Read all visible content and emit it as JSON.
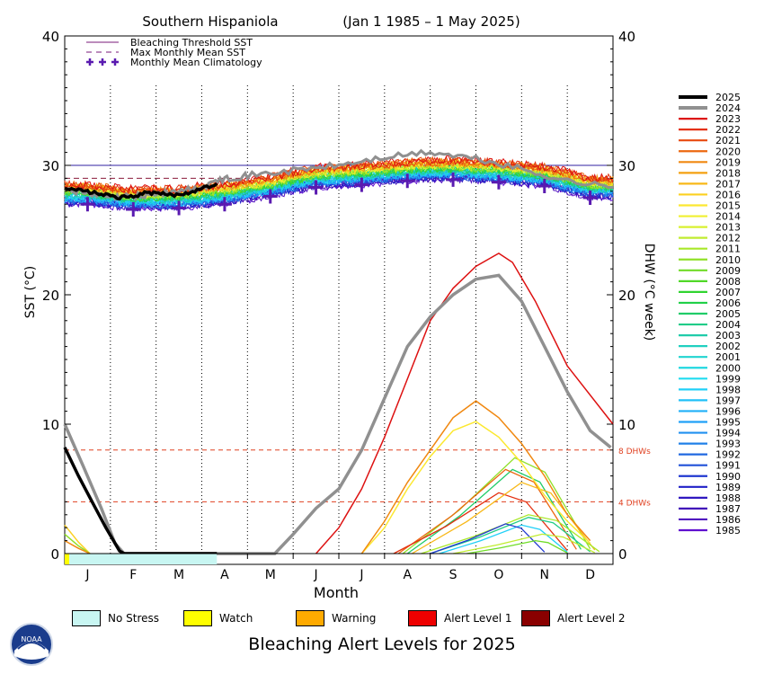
{
  "chart_data": {
    "type": "line",
    "title": "Southern Hispaniola",
    "date_range": "(Jan 1 1985 – 1 May 2025)",
    "xlabel": "Month",
    "ylabel_left": "SST (°C)",
    "ylabel_right": "DHW (°C week)",
    "months": [
      "J",
      "F",
      "M",
      "A",
      "M",
      "J",
      "J",
      "A",
      "S",
      "O",
      "N",
      "D"
    ],
    "ylim": [
      0,
      40
    ],
    "yticks": [
      0,
      10,
      20,
      30,
      40
    ],
    "bleaching_threshold_sst": 30.0,
    "max_monthly_mean_sst": 29.0,
    "dhw_thresholds": [
      {
        "value": 8,
        "label": "8 DHWs"
      },
      {
        "value": 4,
        "label": "4 DHWs"
      }
    ],
    "legend_top": [
      {
        "label": "Bleaching Threshold SST",
        "style": "solid",
        "color": "#7a1a7a"
      },
      {
        "label": "Max Monthly Mean SST",
        "style": "dashed",
        "color": "#7a1a7a"
      },
      {
        "label": "Monthly Mean Climatology",
        "style": "plus",
        "color": "#5a1ab0"
      }
    ],
    "climatology": [
      {
        "month": "J",
        "value": 27.0
      },
      {
        "month": "F",
        "value": 26.6
      },
      {
        "month": "M",
        "value": 26.7
      },
      {
        "month": "A",
        "value": 27.0
      },
      {
        "month": "M",
        "value": 27.6
      },
      {
        "month": "J",
        "value": 28.3
      },
      {
        "month": "J",
        "value": 28.5
      },
      {
        "month": "A",
        "value": 28.8
      },
      {
        "month": "S",
        "value": 28.9
      },
      {
        "month": "O",
        "value": 28.7
      },
      {
        "month": "N",
        "value": 28.4
      },
      {
        "month": "D",
        "value": 27.5
      }
    ],
    "years": [
      "2025",
      "2024",
      "2023",
      "2022",
      "2021",
      "2020",
      "2019",
      "2018",
      "2017",
      "2016",
      "2015",
      "2014",
      "2013",
      "2012",
      "2011",
      "2010",
      "2009",
      "2008",
      "2007",
      "2006",
      "2005",
      "2004",
      "2003",
      "2002",
      "2001",
      "2000",
      "1999",
      "1998",
      "1997",
      "1996",
      "1995",
      "1994",
      "1993",
      "1992",
      "1991",
      "1990",
      "1989",
      "1988",
      "1987",
      "1986",
      "1985"
    ],
    "year_colors": [
      "#000000",
      "#909090",
      "#dd1111",
      "#e43010",
      "#e84a10",
      "#ec6810",
      "#f08810",
      "#f4a010",
      "#f8b818",
      "#fcd020",
      "#fce830",
      "#f0f030",
      "#d8f030",
      "#c0ec30",
      "#a8e828",
      "#90e028",
      "#70dc28",
      "#50d828",
      "#30d430",
      "#20d048",
      "#20cc68",
      "#20cc88",
      "#20ccaa",
      "#20d0c0",
      "#20d4d0",
      "#20d8e0",
      "#20dcf0",
      "#20d0f8",
      "#20c0f8",
      "#20b0f8",
      "#20a0f8",
      "#2090f0",
      "#2080e8",
      "#2068e0",
      "#2050d8",
      "#2038d0",
      "#2020c8",
      "#3018c0",
      "#4010b8",
      "#5010c0",
      "#6010d0"
    ],
    "sst_2025": [
      {
        "x": 0.0,
        "y": 28.3
      },
      {
        "x": 0.3,
        "y": 28.1
      },
      {
        "x": 0.6,
        "y": 27.9
      },
      {
        "x": 0.9,
        "y": 27.7
      },
      {
        "x": 1.2,
        "y": 27.5
      },
      {
        "x": 1.5,
        "y": 27.6
      },
      {
        "x": 1.8,
        "y": 27.9
      },
      {
        "x": 2.1,
        "y": 27.8
      },
      {
        "x": 2.4,
        "y": 27.7
      },
      {
        "x": 2.7,
        "y": 27.9
      },
      {
        "x": 3.0,
        "y": 28.2
      },
      {
        "x": 3.33,
        "y": 28.6
      }
    ],
    "sst_2024": [
      {
        "x": 0.0,
        "y": 28.2
      },
      {
        "x": 0.5,
        "y": 27.8
      },
      {
        "x": 1.0,
        "y": 27.5
      },
      {
        "x": 1.5,
        "y": 27.6
      },
      {
        "x": 2.0,
        "y": 27.8
      },
      {
        "x": 2.5,
        "y": 28.0
      },
      {
        "x": 3.0,
        "y": 28.3
      },
      {
        "x": 3.5,
        "y": 29.0
      },
      {
        "x": 4.0,
        "y": 29.2
      },
      {
        "x": 5.0,
        "y": 29.6
      },
      {
        "x": 6.0,
        "y": 30.0
      },
      {
        "x": 7.0,
        "y": 30.6
      },
      {
        "x": 8.0,
        "y": 31.0
      },
      {
        "x": 9.0,
        "y": 30.5
      },
      {
        "x": 10.0,
        "y": 29.7
      },
      {
        "x": 11.0,
        "y": 28.8
      },
      {
        "x": 12.0,
        "y": 28.3
      }
    ],
    "dhw_2025": [
      {
        "x": 0.0,
        "y": 8.2
      },
      {
        "x": 0.3,
        "y": 6.0
      },
      {
        "x": 0.6,
        "y": 4.0
      },
      {
        "x": 0.9,
        "y": 2.0
      },
      {
        "x": 1.2,
        "y": 0.2
      },
      {
        "x": 1.3,
        "y": 0.0
      },
      {
        "x": 3.33,
        "y": 0.0
      }
    ],
    "dhw_2024": [
      {
        "x": 0.0,
        "y": 10.0
      },
      {
        "x": 0.4,
        "y": 6.8
      },
      {
        "x": 0.8,
        "y": 3.5
      },
      {
        "x": 1.1,
        "y": 0.8
      },
      {
        "x": 1.3,
        "y": 0.0
      },
      {
        "x": 4.6,
        "y": 0.0
      },
      {
        "x": 5.0,
        "y": 1.5
      },
      {
        "x": 5.5,
        "y": 3.5
      },
      {
        "x": 6.0,
        "y": 5.0
      },
      {
        "x": 6.5,
        "y": 8.0
      },
      {
        "x": 7.0,
        "y": 12.0
      },
      {
        "x": 7.5,
        "y": 16.0
      },
      {
        "x": 8.0,
        "y": 18.3
      },
      {
        "x": 8.5,
        "y": 20.0
      },
      {
        "x": 9.0,
        "y": 21.2
      },
      {
        "x": 9.5,
        "y": 21.5
      },
      {
        "x": 10.0,
        "y": 19.5
      },
      {
        "x": 10.5,
        "y": 16.0
      },
      {
        "x": 11.0,
        "y": 12.5
      },
      {
        "x": 11.5,
        "y": 9.5
      },
      {
        "x": 11.95,
        "y": 8.2
      }
    ],
    "dhw_2023": [
      {
        "x": 5.5,
        "y": 0.0
      },
      {
        "x": 6.0,
        "y": 2.0
      },
      {
        "x": 6.5,
        "y": 5.0
      },
      {
        "x": 7.0,
        "y": 9.0
      },
      {
        "x": 7.5,
        "y": 13.5
      },
      {
        "x": 8.0,
        "y": 18.0
      },
      {
        "x": 8.5,
        "y": 20.5
      },
      {
        "x": 9.0,
        "y": 22.2
      },
      {
        "x": 9.5,
        "y": 23.2
      },
      {
        "x": 9.8,
        "y": 22.5
      },
      {
        "x": 10.3,
        "y": 19.5
      },
      {
        "x": 11.0,
        "y": 14.5
      },
      {
        "x": 12.0,
        "y": 10.0
      }
    ],
    "dhw_2015": [
      {
        "x": 6.5,
        "y": 0.0
      },
      {
        "x": 7.0,
        "y": 2.0
      },
      {
        "x": 7.5,
        "y": 5.0
      },
      {
        "x": 8.0,
        "y": 7.5
      },
      {
        "x": 8.5,
        "y": 9.5
      },
      {
        "x": 9.0,
        "y": 10.2
      },
      {
        "x": 9.5,
        "y": 9.0
      },
      {
        "x": 10.0,
        "y": 7.0
      },
      {
        "x": 10.5,
        "y": 4.5
      },
      {
        "x": 11.0,
        "y": 2.5
      },
      {
        "x": 11.5,
        "y": 0.8
      }
    ],
    "dhw_2019": [
      {
        "x": 6.5,
        "y": 0.0
      },
      {
        "x": 7.0,
        "y": 2.5
      },
      {
        "x": 7.5,
        "y": 5.5
      },
      {
        "x": 8.0,
        "y": 8.0
      },
      {
        "x": 8.5,
        "y": 10.5
      },
      {
        "x": 9.0,
        "y": 11.8
      },
      {
        "x": 9.5,
        "y": 10.5
      },
      {
        "x": 10.0,
        "y": 8.5
      },
      {
        "x": 10.5,
        "y": 6.0
      },
      {
        "x": 11.0,
        "y": 3.0
      },
      {
        "x": 11.5,
        "y": 1.0
      }
    ],
    "dhw_moderate": [
      {
        "year": "2005",
        "peak": 6.5,
        "start": 7.5,
        "end": 11.3
      },
      {
        "year": "2010",
        "peak": 7.4,
        "start": 7.4,
        "end": 11.5
      },
      {
        "year": "2020",
        "peak": 6.5,
        "start": 7.3,
        "end": 11.2
      },
      {
        "year": "2022",
        "peak": 4.7,
        "start": 7.2,
        "end": 11.0
      },
      {
        "year": "2017",
        "peak": 5.5,
        "start": 7.6,
        "end": 11.6
      },
      {
        "year": "2011",
        "peak": 3.0,
        "start": 7.8,
        "end": 11.7
      },
      {
        "year": "2004",
        "peak": 2.8,
        "start": 8.0,
        "end": 11.5
      },
      {
        "year": "1998",
        "peak": 2.2,
        "start": 8.2,
        "end": 11.0
      },
      {
        "year": "1990",
        "peak": 2.3,
        "start": 8.0,
        "end": 10.5
      },
      {
        "year": "2012",
        "peak": 1.5,
        "start": 8.5,
        "end": 11.6
      },
      {
        "year": "2009",
        "peak": 1.0,
        "start": 8.8,
        "end": 11.0
      }
    ],
    "stress_bar_2025": [
      {
        "from": 0.0,
        "to": 0.1,
        "level": "watch"
      },
      {
        "from": 0.1,
        "to": 3.33,
        "level": "no_stress"
      }
    ],
    "alert_legend": [
      {
        "label": "No Stress",
        "color": "#c8f6f2"
      },
      {
        "label": "Watch",
        "color": "#ffff00"
      },
      {
        "label": "Warning",
        "color": "#ffaa00"
      },
      {
        "label": "Alert Level 1",
        "color": "#ee0000"
      },
      {
        "label": "Alert Level 2",
        "color": "#8a0000"
      }
    ],
    "footer_title": "Bleaching Alert Levels for 2025"
  },
  "logo_text": "NOAA"
}
